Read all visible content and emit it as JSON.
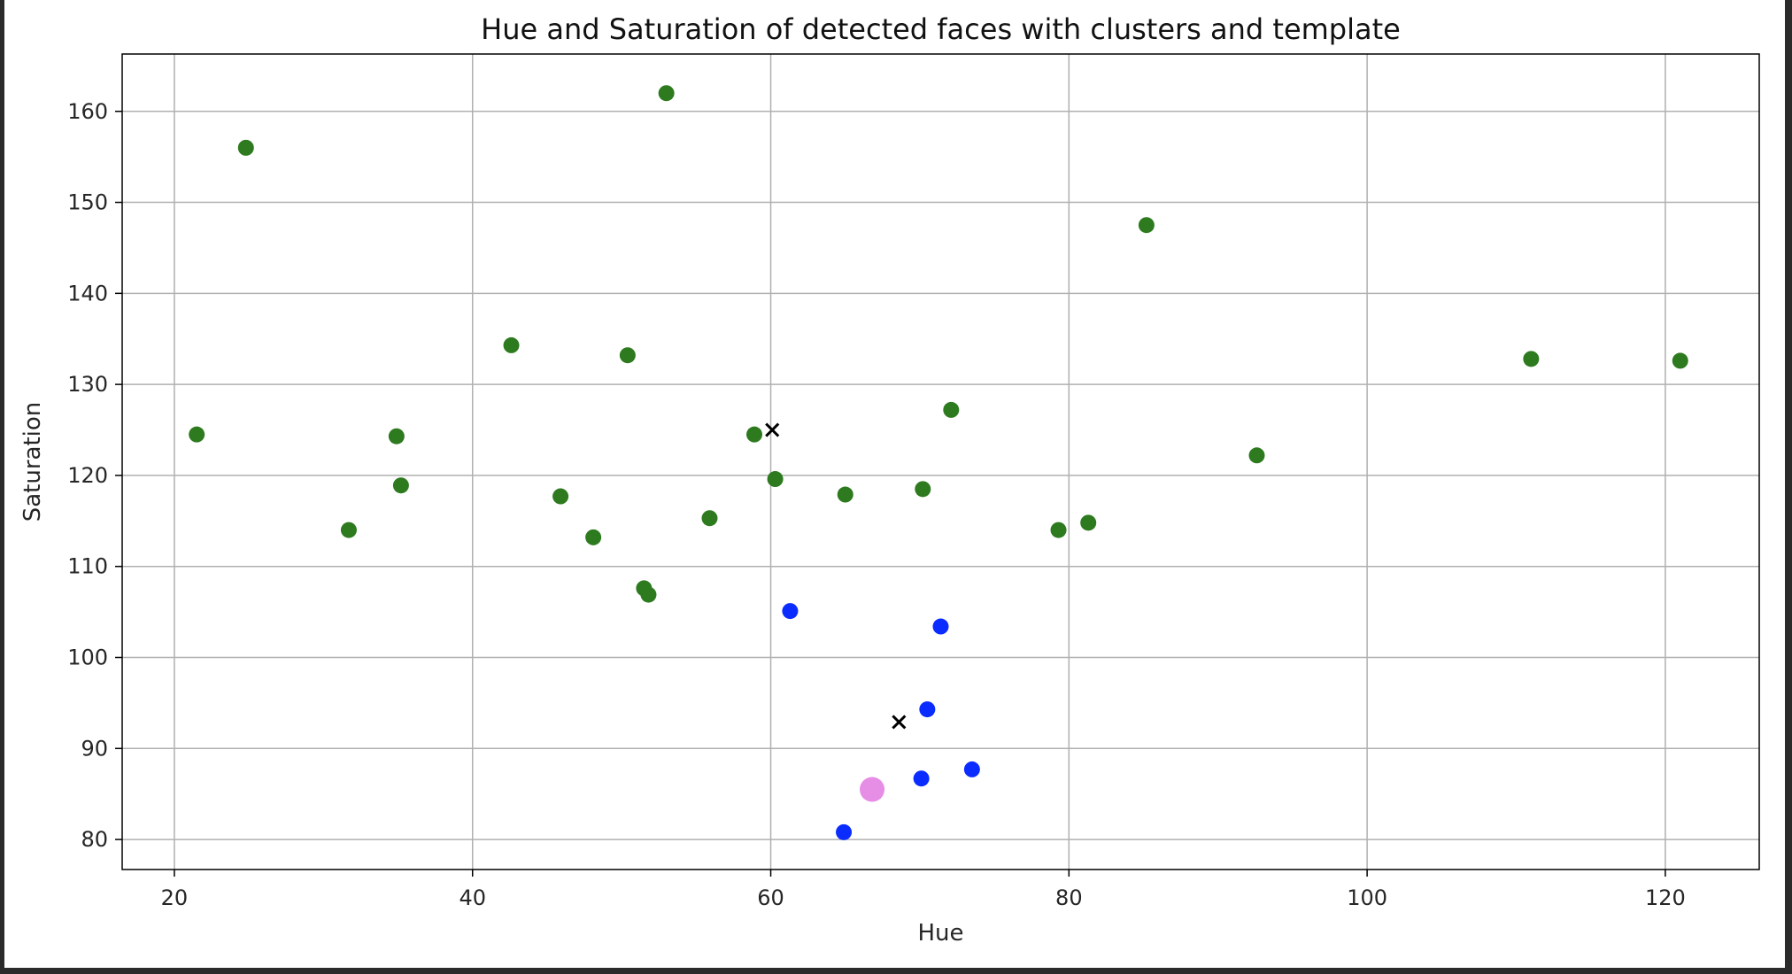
{
  "chart_data": {
    "type": "scatter",
    "title": "Hue and Saturation of detected faces with clusters and template",
    "xlabel": "Hue",
    "ylabel": "Saturation",
    "xlim": [
      16.5,
      126.3
    ],
    "ylim": [
      76.7,
      166.3
    ],
    "xticks": [
      20,
      40,
      60,
      80,
      100,
      120
    ],
    "yticks": [
      80,
      90,
      100,
      110,
      120,
      130,
      140,
      150,
      160
    ],
    "grid": true,
    "series": [
      {
        "color": "#2d7a1f",
        "marker": "circle",
        "points": [
          [
            21.5,
            124.5
          ],
          [
            24.8,
            156.0
          ],
          [
            31.7,
            114.0
          ],
          [
            34.9,
            124.3
          ],
          [
            35.2,
            118.9
          ],
          [
            42.6,
            134.3
          ],
          [
            45.9,
            117.7
          ],
          [
            48.1,
            113.2
          ],
          [
            50.4,
            133.2
          ],
          [
            51.5,
            107.6
          ],
          [
            51.8,
            106.9
          ],
          [
            53.0,
            162.0
          ],
          [
            55.9,
            115.3
          ],
          [
            58.9,
            124.5
          ],
          [
            60.3,
            119.6
          ],
          [
            65.0,
            117.9
          ],
          [
            70.2,
            118.5
          ],
          [
            72.1,
            127.2
          ],
          [
            79.3,
            114.0
          ],
          [
            81.3,
            114.8
          ],
          [
            85.2,
            147.5
          ],
          [
            92.6,
            122.2
          ],
          [
            111.0,
            132.8
          ],
          [
            121.0,
            132.6
          ]
        ]
      },
      {
        "color": "#0a2cff",
        "marker": "circle",
        "points": [
          [
            61.3,
            105.1
          ],
          [
            71.4,
            103.4
          ],
          [
            70.5,
            94.3
          ],
          [
            73.5,
            87.7
          ],
          [
            70.1,
            86.7
          ],
          [
            64.9,
            80.8
          ]
        ]
      },
      {
        "color": "#000000",
        "marker": "x",
        "points": [
          [
            60.1,
            125.0
          ],
          [
            68.6,
            92.9
          ]
        ]
      },
      {
        "color": "#e68de6",
        "marker": "large-circle",
        "points": [
          [
            66.8,
            85.5
          ]
        ]
      }
    ]
  }
}
